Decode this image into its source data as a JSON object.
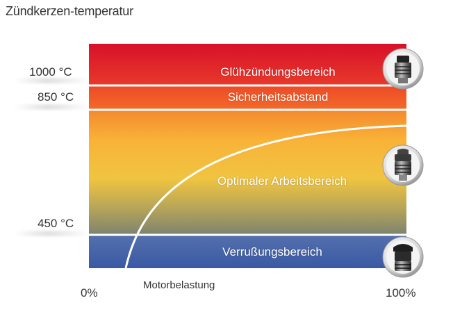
{
  "title": "Zündkerzen-temperatur",
  "y_ticks": [
    {
      "label": "1000 °C",
      "value": 1000
    },
    {
      "label": "850 °C",
      "value": 850
    },
    {
      "label": "450 °C",
      "value": 450
    }
  ],
  "x_axis": {
    "label": "Motorbelastung",
    "min_label": "0%",
    "max_label": "100%"
  },
  "zones": [
    {
      "name": "Glühzündungsbereich",
      "from": 1000,
      "to": 1180,
      "color": "#e02a2e"
    },
    {
      "name": "Sicherheitsabstand",
      "from": 850,
      "to": 1000,
      "color": "#ef5a2b"
    },
    {
      "name": "Optimaler Arbeitsbereich",
      "from": 450,
      "to": 850,
      "color": "#f7b23a"
    },
    {
      "name": "Verrußungsbereich",
      "from": 250,
      "to": 450,
      "color": "#4a62a4"
    }
  ],
  "colors": {
    "red": "#d91a2a",
    "orange": "#f05a2a",
    "yellow": "#f9c33e",
    "blue": "#3f5ea8",
    "divider": "#ffffff"
  },
  "icons": [
    "spark-plug-icon-hot",
    "spark-plug-icon-optimal",
    "spark-plug-icon-sooted"
  ]
}
